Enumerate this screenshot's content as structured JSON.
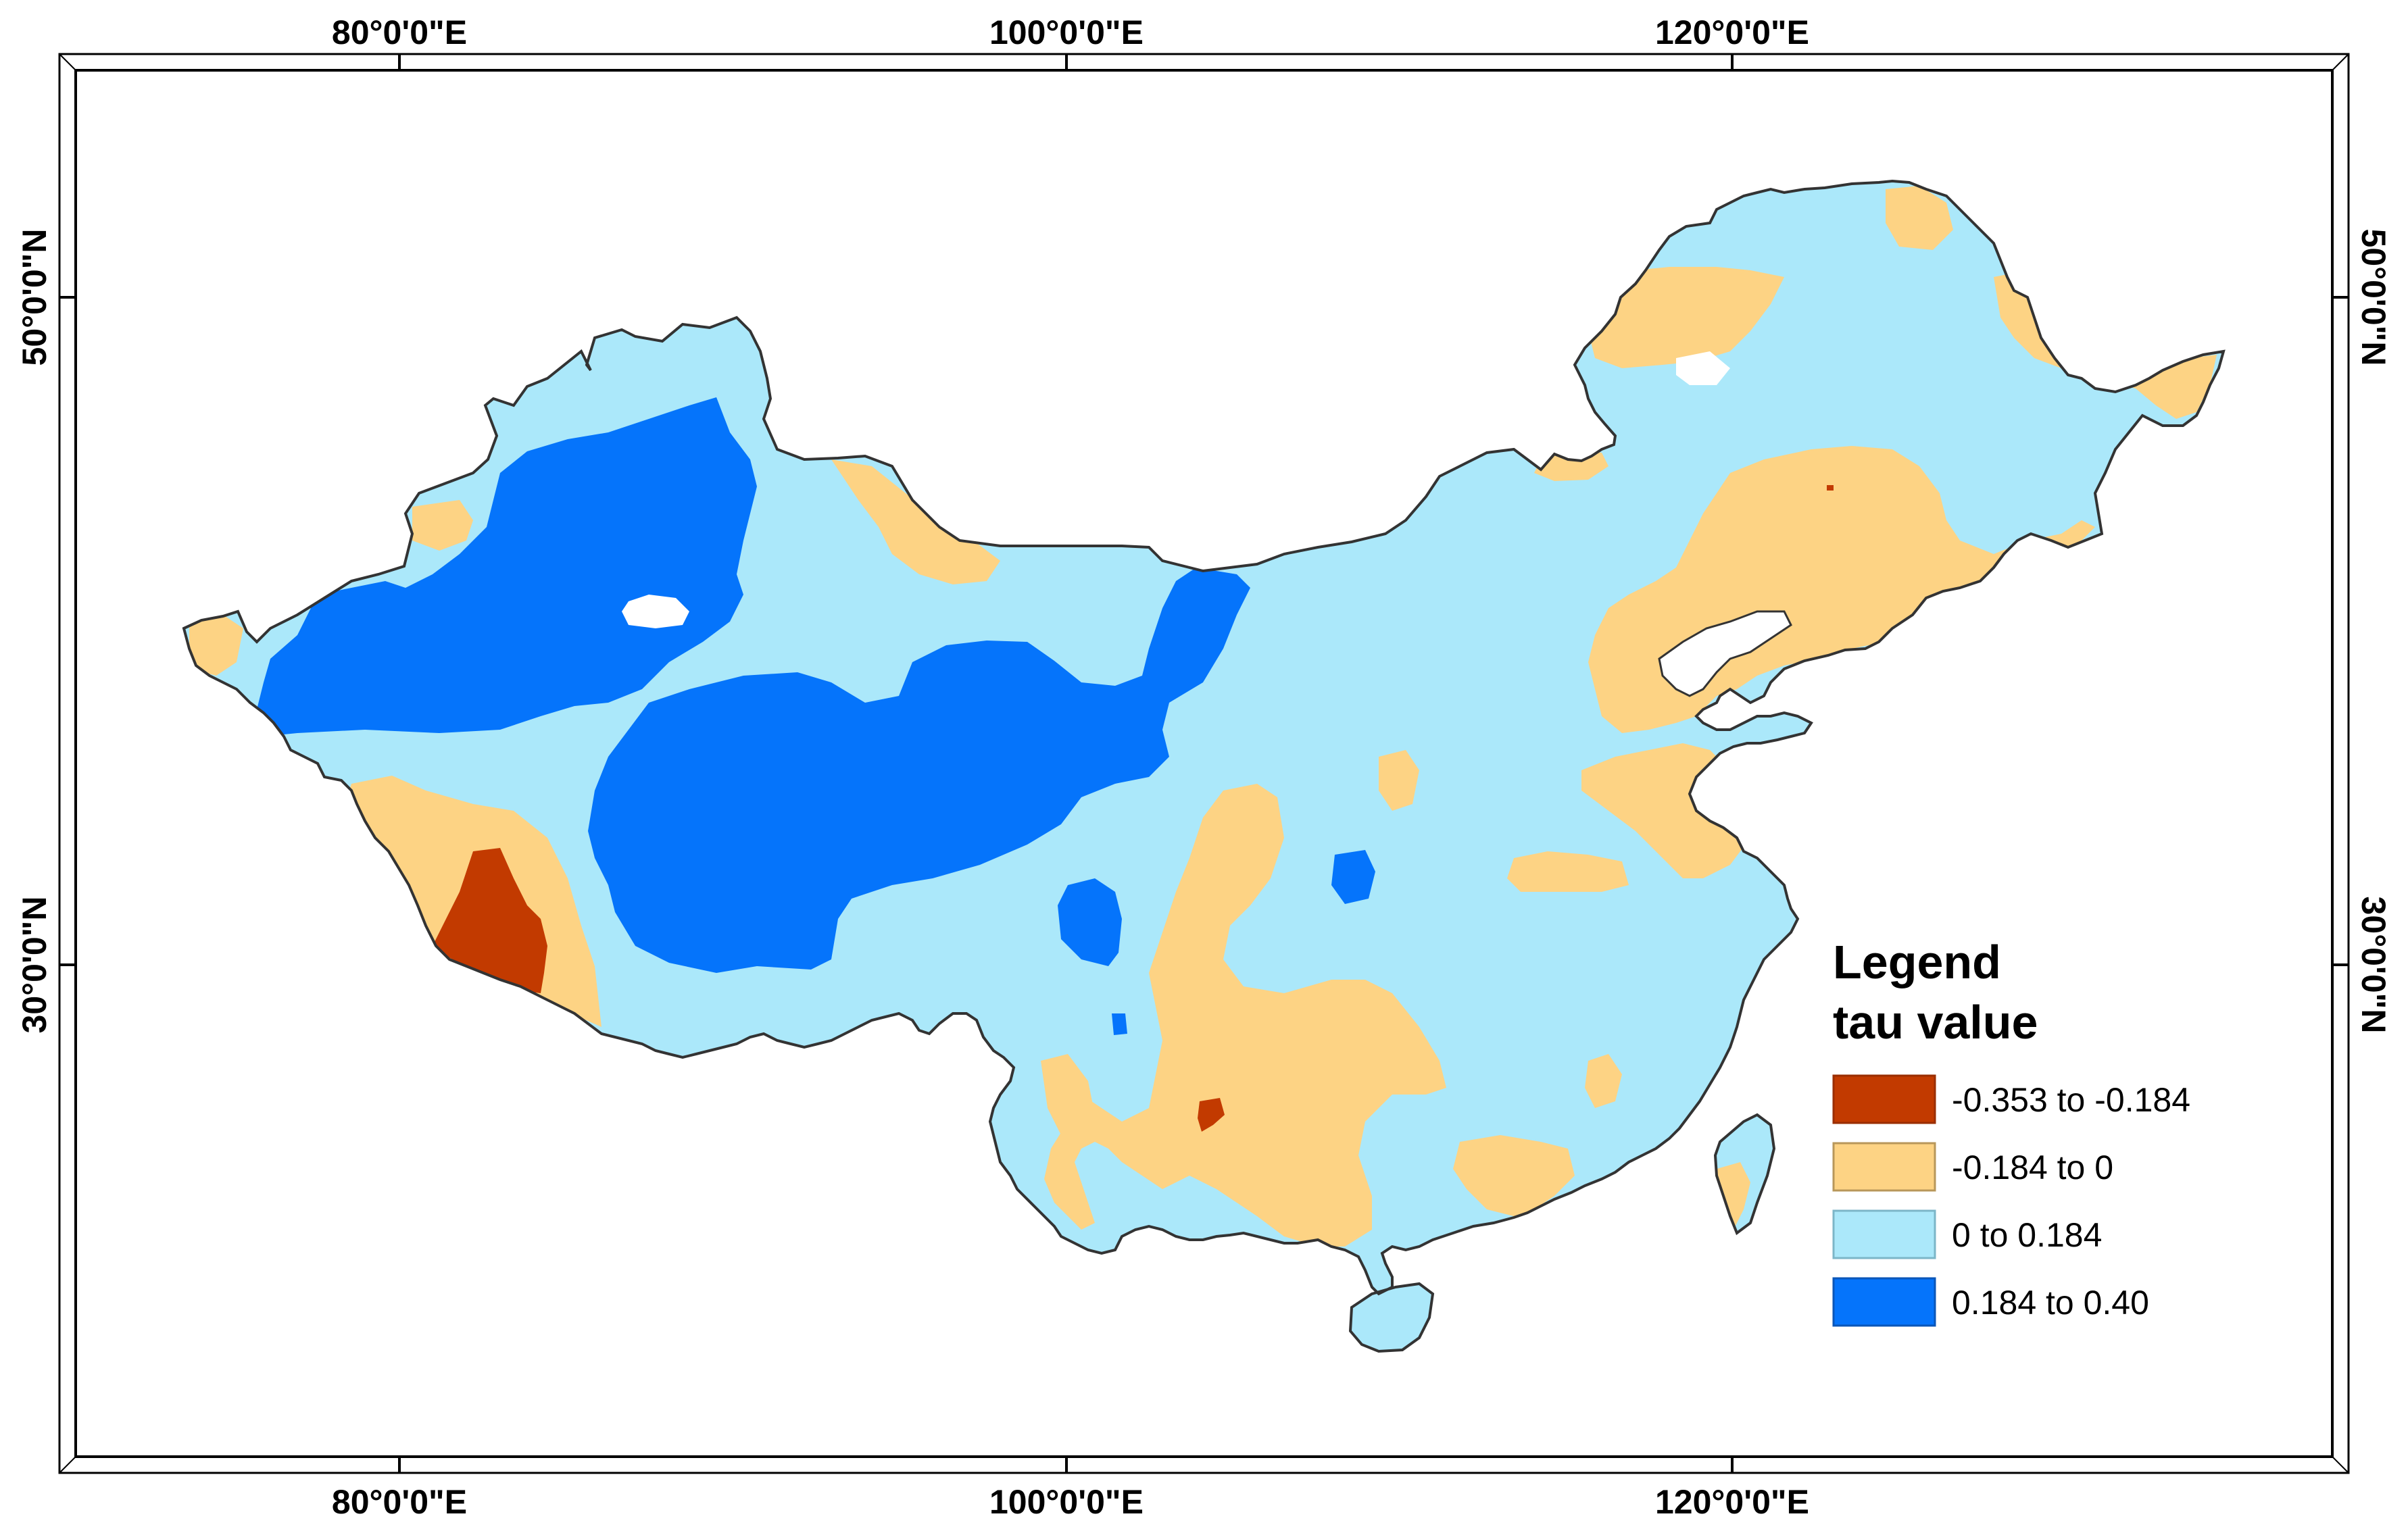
{
  "map": {
    "top_ticks": [
      "80°0'0\"E",
      "100°0'0\"E",
      "120°0'0\"E"
    ],
    "bottom_ticks": [
      "80°0'0\"E",
      "100°0'0\"E",
      "120°0'0\"E"
    ],
    "left_ticks": [
      "50°0'0\"N",
      "30°0'0\"N"
    ],
    "right_ticks": [
      "50°0'0\"N",
      "30°0'0\"N"
    ]
  },
  "legend": {
    "title": "Legend",
    "subtitle": "tau value",
    "classes": [
      {
        "label": "-0.353 to -0.184",
        "color": "#c23a00"
      },
      {
        "label": "-0.184 to 0",
        "color": "#fdd384"
      },
      {
        "label": "0 to 0.184",
        "color": "#abe8fa"
      },
      {
        "label": "0.184 to 0.40",
        "color": "#0574fb"
      }
    ]
  },
  "colors": {
    "strong_negative": "#c23a00",
    "weak_negative": "#fdd384",
    "weak_positive": "#abe8fa",
    "strong_positive": "#0574fb",
    "outline": "#333333"
  }
}
